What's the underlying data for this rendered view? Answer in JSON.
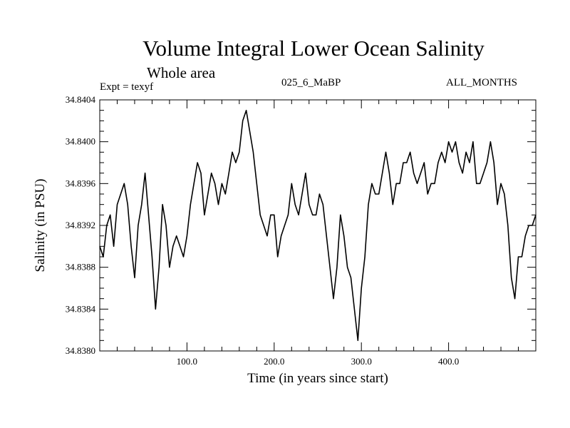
{
  "chart_data": {
    "type": "line",
    "title": "Volume Integral Lower Ocean Salinity",
    "subtitle": "Whole area",
    "annotations": {
      "experiment": "Expt = texyf",
      "run": "025_6_MaBP",
      "months": "ALL_MONTHS"
    },
    "xlabel": "Time (in years since start)",
    "ylabel": "Salinity (in PSU)",
    "xlim": [
      0,
      500
    ],
    "ylim": [
      34.838,
      34.8404
    ],
    "x_ticks": [
      100,
      200,
      300,
      400
    ],
    "x_tick_labels": [
      "100.0",
      "200.0",
      "300.0",
      "400.0"
    ],
    "y_ticks": [
      34.838,
      34.8384,
      34.8388,
      34.8392,
      34.8396,
      34.84,
      34.8404
    ],
    "y_tick_labels": [
      "34.8380",
      "34.8384",
      "34.8388",
      "34.8392",
      "34.8396",
      "34.8400",
      "34.8404"
    ],
    "grid": false,
    "legend": "none",
    "line_color": "#000000",
    "series": [
      {
        "x": [
          0,
          4,
          8,
          12,
          16,
          20,
          24,
          28,
          32,
          36,
          40,
          44,
          48,
          52,
          56,
          60,
          64,
          68,
          72,
          76,
          80,
          84,
          88,
          92,
          96,
          100,
          104,
          108,
          112,
          116,
          120,
          124,
          128,
          132,
          136,
          140,
          144,
          148,
          152,
          156,
          160,
          164,
          168,
          172,
          176,
          180,
          184,
          188,
          192,
          196,
          200,
          204,
          208,
          212,
          216,
          220,
          224,
          228,
          232,
          236,
          240,
          244,
          248,
          252,
          256,
          260,
          264,
          268,
          272,
          276,
          280,
          284,
          288,
          292,
          296,
          300,
          304,
          308,
          312,
          316,
          320,
          324,
          328,
          332,
          336,
          340,
          344,
          348,
          352,
          356,
          360,
          364,
          368,
          372,
          376,
          380,
          384,
          388,
          392,
          396,
          400,
          404,
          408,
          412,
          416,
          420,
          424,
          428,
          432,
          436,
          440,
          444,
          448,
          452,
          456,
          460,
          464,
          468,
          472,
          476,
          480,
          484,
          488,
          492,
          496,
          500
        ],
        "values": [
          34.839,
          34.8389,
          34.8392,
          34.8393,
          34.839,
          34.8394,
          34.8395,
          34.8396,
          34.8394,
          34.839,
          34.8387,
          34.8392,
          34.8394,
          34.8397,
          34.8393,
          34.8389,
          34.8384,
          34.8388,
          34.8394,
          34.8392,
          34.8388,
          34.839,
          34.8391,
          34.839,
          34.8389,
          34.8391,
          34.8394,
          34.8396,
          34.8398,
          34.8397,
          34.8393,
          34.8395,
          34.8397,
          34.8396,
          34.8394,
          34.8396,
          34.8395,
          34.8397,
          34.8399,
          34.8398,
          34.8399,
          34.8402,
          34.8403,
          34.8401,
          34.8399,
          34.8396,
          34.8393,
          34.8392,
          34.8391,
          34.8393,
          34.8393,
          34.8389,
          34.8391,
          34.8392,
          34.8393,
          34.8396,
          34.8394,
          34.8393,
          34.8395,
          34.8397,
          34.8394,
          34.8393,
          34.8393,
          34.8395,
          34.8394,
          34.8391,
          34.8388,
          34.8385,
          34.8388,
          34.8393,
          34.8391,
          34.8388,
          34.8387,
          34.8384,
          34.8381,
          34.8386,
          34.8389,
          34.8394,
          34.8396,
          34.8395,
          34.8395,
          34.8397,
          34.8399,
          34.8397,
          34.8394,
          34.8396,
          34.8396,
          34.8398,
          34.8398,
          34.8399,
          34.8397,
          34.8396,
          34.8397,
          34.8398,
          34.8395,
          34.8396,
          34.8396,
          34.8398,
          34.8399,
          34.8398,
          34.84,
          34.8399,
          34.84,
          34.8398,
          34.8397,
          34.8399,
          34.8398,
          34.84,
          34.8396,
          34.8396,
          34.8397,
          34.8398,
          34.84,
          34.8398,
          34.8394,
          34.8396,
          34.8395,
          34.8392,
          34.8387,
          34.8385,
          34.8389,
          34.8389,
          34.8391,
          34.8392,
          34.8392,
          34.8393
        ]
      }
    ]
  }
}
